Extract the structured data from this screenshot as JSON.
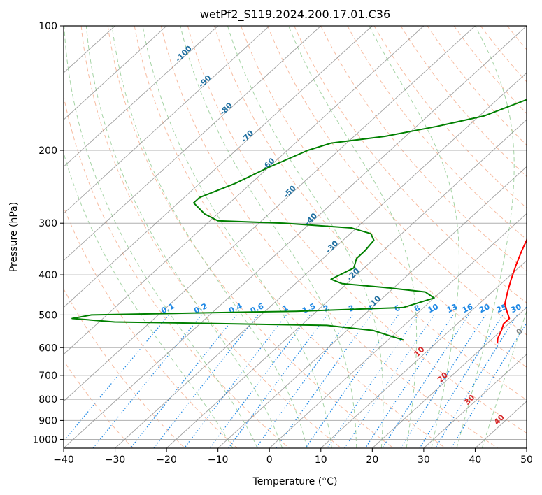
{
  "chart_data": {
    "type": "line",
    "title": "wetPf2_S119.2024.200.17.01.C36",
    "xlabel": "Temperature (°C)",
    "ylabel": "Pressure (hPa)",
    "xlim": [
      -40,
      50
    ],
    "ylim": [
      1050,
      100
    ],
    "y_scale": "log",
    "grid": true,
    "x_ticks": [
      -40,
      -30,
      -20,
      -10,
      0,
      10,
      20,
      30,
      40,
      50
    ],
    "x_tick_labels": [
      "−40",
      "−30",
      "−20",
      "−10",
      "0",
      "10",
      "20",
      "30",
      "40",
      "50"
    ],
    "y_ticks": [
      100,
      200,
      300,
      400,
      500,
      600,
      700,
      800,
      900,
      1000
    ],
    "y_tick_labels": [
      "100",
      "200",
      "300",
      "400",
      "500",
      "600",
      "700",
      "800",
      "900",
      "1000"
    ],
    "series": [
      {
        "kind": "temperature",
        "color": "#ff0000",
        "points": [
          [
            1.8,
            100
          ],
          [
            0.5,
            103
          ],
          [
            -1,
            108
          ],
          [
            -1.5,
            115
          ],
          [
            -1.5,
            122
          ],
          [
            -2.5,
            128
          ],
          [
            -3,
            135
          ],
          [
            -2.5,
            145
          ],
          [
            -2,
            155
          ],
          [
            -1,
            170
          ],
          [
            0,
            185
          ],
          [
            1,
            200
          ],
          [
            2.5,
            220
          ],
          [
            4,
            240
          ],
          [
            6,
            260
          ],
          [
            7,
            275
          ],
          [
            6.5,
            290
          ],
          [
            4.5,
            300
          ],
          [
            5,
            320
          ],
          [
            7,
            350
          ],
          [
            9,
            380
          ],
          [
            11,
            410
          ],
          [
            13,
            440
          ],
          [
            15,
            470
          ],
          [
            17,
            490
          ],
          [
            19,
            510
          ],
          [
            19,
            525
          ],
          [
            20,
            545
          ],
          [
            21,
            570
          ],
          [
            22,
            586
          ]
        ]
      },
      {
        "kind": "dewpoint",
        "color": "#008000",
        "points": [
          [
            -13,
            100
          ],
          [
            -15,
            110
          ],
          [
            -17,
            120
          ],
          [
            -18.5,
            130
          ],
          [
            -20.5,
            140
          ],
          [
            -24,
            150
          ],
          [
            -29,
            165
          ],
          [
            -36,
            175
          ],
          [
            -44,
            185
          ],
          [
            -53,
            192
          ],
          [
            -56,
            200
          ],
          [
            -60,
            220
          ],
          [
            -63,
            240
          ],
          [
            -67,
            260
          ],
          [
            -67,
            268
          ],
          [
            -62.5,
            285
          ],
          [
            -58.5,
            296
          ],
          [
            -45,
            300
          ],
          [
            -31,
            308
          ],
          [
            -26,
            318
          ],
          [
            -24,
            330
          ],
          [
            -23.5,
            350
          ],
          [
            -23.5,
            365
          ],
          [
            -22,
            385
          ],
          [
            -24,
            410
          ],
          [
            -21,
            420
          ],
          [
            -11,
            430
          ],
          [
            -3,
            440
          ],
          [
            0,
            455
          ],
          [
            -4,
            480
          ],
          [
            -24,
            490
          ],
          [
            -44,
            495
          ],
          [
            -63,
            500
          ],
          [
            -66,
            510
          ],
          [
            -57,
            520
          ],
          [
            -35,
            525
          ],
          [
            -15,
            530
          ],
          [
            -5,
            545
          ],
          [
            -1,
            560
          ],
          [
            3,
            575
          ]
        ]
      }
    ],
    "isotherm_spacing": 10,
    "dry_adiabats": [
      -30,
      -20,
      -10,
      0,
      10,
      20,
      30,
      40,
      50,
      60,
      70,
      80,
      90,
      100,
      110,
      120,
      130,
      140,
      150,
      160,
      170,
      180,
      190,
      200
    ],
    "moist_adiabats": [
      -10,
      -5,
      0,
      5,
      10,
      15,
      20,
      25,
      30,
      35,
      40
    ],
    "mixing_ratio_lines": [
      "0.1",
      "0.2",
      "0.4",
      "0.6",
      "1",
      "1.5",
      "2",
      "3",
      "4",
      "6",
      "8",
      "10",
      "13",
      "16",
      "20",
      "25",
      "30",
      "36"
    ],
    "annotations": {
      "wet_bulb_label": "0",
      "moist_labels": [
        "10",
        "20",
        "30",
        "40"
      ],
      "isotherm_labels": [
        "-100",
        "-90",
        "-80",
        "-70",
        "-60",
        "-50",
        "-40",
        "-30",
        "-20",
        "-10"
      ]
    },
    "colors": {
      "grid": "#b0b0b0",
      "isotherm": "#7a7a7a",
      "dry_adiabat": "#f4a582",
      "moist_adiabat": "#8fc98f",
      "mixing_ratio": "#1e88e5",
      "isotherm_label": "#1f6fa0",
      "moist_label": "#d62728",
      "zero_label": "#808080",
      "ml_edge": "#d2b48c"
    }
  }
}
